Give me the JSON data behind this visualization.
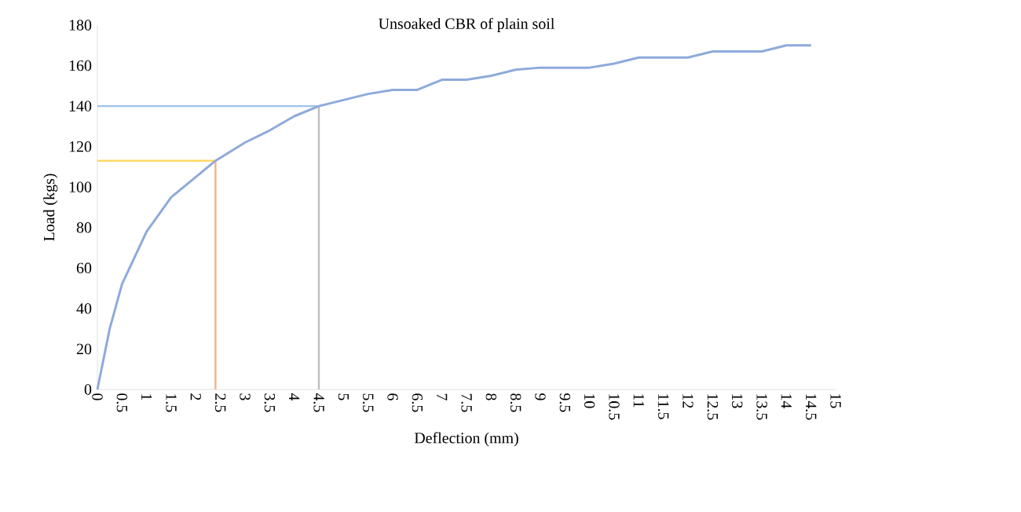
{
  "chart_data": {
    "type": "line",
    "title": "Unsoaked CBR of plain soil",
    "xlabel": "Deflection (mm)",
    "ylabel": "Load (kgs)",
    "series": [
      {
        "color": "#8eaadb",
        "x": [
          0,
          0.25,
          0.5,
          1,
          1.5,
          2,
          2.4,
          3,
          3.5,
          4,
          4.5,
          5,
          5.5,
          6,
          6.5,
          7,
          7.5,
          8,
          8.5,
          9,
          9.5,
          10,
          10.5,
          11,
          11.5,
          12,
          12.5,
          13,
          13.5,
          14,
          14.5
        ],
        "values": [
          0,
          30,
          52,
          78,
          95,
          105,
          113,
          122,
          128,
          135,
          140,
          143,
          146,
          148,
          148,
          153,
          153,
          155,
          158,
          159,
          159,
          159,
          161,
          164,
          164,
          164,
          167,
          167,
          167,
          170,
          170
        ]
      }
    ],
    "xlim": [
      0,
      15
    ],
    "xticks": [
      0,
      0.5,
      1,
      1.5,
      2,
      2.5,
      3,
      3.5,
      4,
      4.5,
      5,
      5.5,
      6,
      6.5,
      7,
      7.5,
      8,
      8.5,
      9,
      9.5,
      10,
      10.5,
      11,
      11.5,
      12,
      12.5,
      13,
      13.5,
      14,
      14.5,
      15
    ],
    "ylim": [
      0,
      180
    ],
    "yticks": [
      0,
      20,
      40,
      60,
      80,
      100,
      120,
      140,
      160,
      180
    ],
    "ref_lines": [
      {
        "axis": "y",
        "value": 140,
        "color": "#9dc3e6"
      },
      {
        "axis": "x",
        "value": 4.5,
        "color": "#bfbfbf"
      },
      {
        "axis": "y",
        "value": 113,
        "color": "#ffd966"
      },
      {
        "axis": "x",
        "value": 2.4,
        "color": "#f4b183"
      }
    ],
    "grid": false,
    "marker": "none",
    "line_style": "solid"
  }
}
